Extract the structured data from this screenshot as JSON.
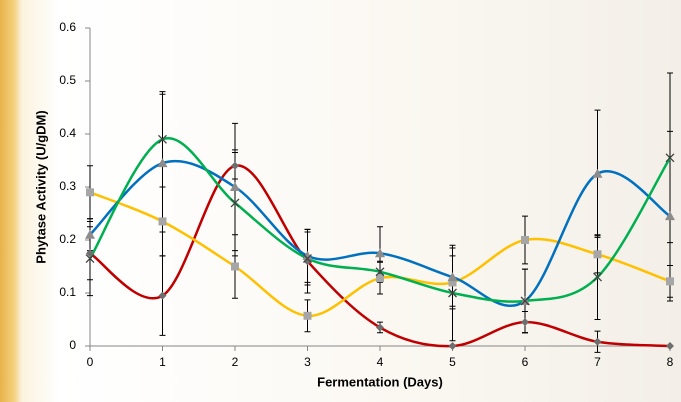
{
  "chart_data": {
    "type": "line",
    "x_label": "Fermentation (Days)",
    "y_label": "Phytase Activity (U/gDM)",
    "x": [
      0,
      1,
      2,
      3,
      4,
      5,
      6,
      7,
      8
    ],
    "xlim": [
      0,
      8
    ],
    "xticks": [
      0,
      1,
      2,
      3,
      4,
      5,
      6,
      7,
      8
    ],
    "ylim": [
      0,
      0.6
    ],
    "yticks": [
      0,
      0.1,
      0.2,
      0.3,
      0.4,
      0.5,
      0.6
    ],
    "smooth": true,
    "series": [
      {
        "color": "#c00000",
        "marker": "diamond",
        "marker_color": "#6e6e6e",
        "values": [
          0.175,
          0.095,
          0.34,
          0.16,
          0.035,
          0.0,
          0.045,
          0.008,
          0.0
        ],
        "errors": [
          0.05,
          0.075,
          0.025,
          0.06,
          0.01,
          0.0,
          0.02,
          0.02,
          0.0
        ]
      },
      {
        "color": "#ffc000",
        "marker": "square",
        "marker_color": "#a6a6a6",
        "values": [
          0.29,
          0.235,
          0.15,
          0.057,
          0.128,
          0.12,
          0.2,
          0.173,
          0.122
        ],
        "errors": [
          0.05,
          0.065,
          0.06,
          0.03,
          0.03,
          0.05,
          0.045,
          0.035,
          0.03
        ]
      },
      {
        "color": "#0070c0",
        "marker": "triangle",
        "marker_color": "#8c8c8c",
        "values": [
          0.21,
          0.345,
          0.3,
          0.17,
          0.175,
          0.13,
          0.085,
          0.325,
          0.245
        ],
        "errors": [
          0.03,
          0.13,
          0.12,
          0.05,
          0.05,
          0.055,
          0.06,
          0.12,
          0.16
        ]
      },
      {
        "color": "#00b050",
        "marker": "x",
        "marker_color": "#404040",
        "values": [
          0.165,
          0.39,
          0.27,
          0.165,
          0.14,
          0.1,
          0.085,
          0.13,
          0.355
        ],
        "errors": [
          0.07,
          0.09,
          0.1,
          0.05,
          0.02,
          0.09,
          0.06,
          0.08,
          0.16
        ]
      }
    ]
  }
}
